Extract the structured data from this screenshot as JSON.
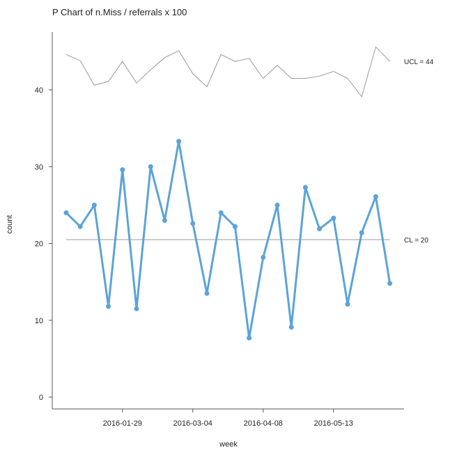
{
  "chart_data": {
    "type": "line",
    "title": "P Chart of n.Miss / referrals x 100",
    "xlabel": "week",
    "ylabel": "count",
    "ylim": [
      0,
      45
    ],
    "yticks": [
      0,
      10,
      20,
      30,
      40
    ],
    "x_tick_labels": [
      "2016-01-29",
      "2016-03-04",
      "2016-04-08",
      "2016-05-13"
    ],
    "x_tick_index": [
      4,
      9,
      14,
      19
    ],
    "grid": false,
    "colors": {
      "series": "#5ba3d9",
      "limits": "#999999"
    },
    "series": [
      {
        "values": [
          24.0,
          22.2,
          25.0,
          11.8,
          29.6,
          11.5,
          30.0,
          23.0,
          33.3,
          22.6,
          13.5,
          24.0,
          22.2,
          7.7,
          18.2,
          25.0,
          9.1,
          27.3,
          21.9,
          23.3,
          12.1,
          21.4,
          26.1,
          14.8
        ]
      },
      {
        "values": [
          44.6,
          43.8,
          40.6,
          41.1,
          43.7,
          40.9,
          42.6,
          44.2,
          45.1,
          42.1,
          40.4,
          44.6,
          43.7,
          44.1,
          41.5,
          43.2,
          41.5,
          41.5,
          41.8,
          42.4,
          41.5,
          39.1,
          45.6,
          43.7
        ]
      },
      {
        "values": [
          20.5,
          20.5,
          20.5,
          20.5,
          20.5,
          20.5,
          20.5,
          20.5,
          20.5,
          20.5,
          20.5,
          20.5,
          20.5,
          20.5,
          20.5,
          20.5,
          20.5,
          20.5,
          20.5,
          20.5,
          20.5,
          20.5,
          20.5,
          20.5
        ]
      }
    ],
    "annotations": [
      "UCL = 44",
      "CL = 20"
    ]
  }
}
